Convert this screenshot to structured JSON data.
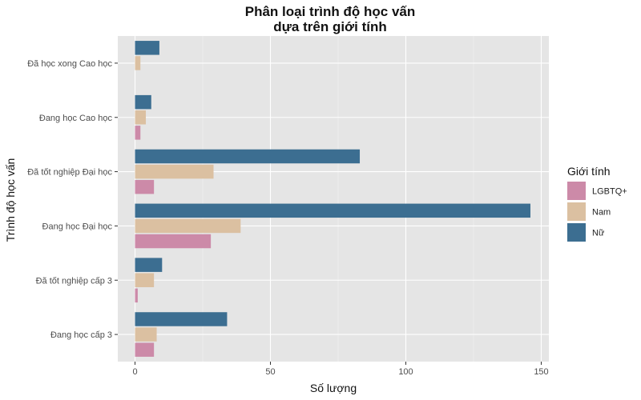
{
  "chart_data": {
    "type": "bar",
    "orientation": "horizontal",
    "title": "Phân loại trình độ học vấn",
    "subtitle": "dựa trên giới tính",
    "xlabel": "Số lượng",
    "ylabel": "Trình độ học vấn",
    "xlim": [
      0,
      150
    ],
    "xticks": [
      0,
      50,
      100,
      150
    ],
    "grid": true,
    "legend_position": "right",
    "legend_title": "Giới tính",
    "categories": [
      "Đã học xong Cao học",
      "Đang học Cao học",
      "Đã tốt nghiệp Đại học",
      "Đang học Đại học",
      "Đã tốt nghiệp cấp 3",
      "Đang học cấp 3"
    ],
    "series": [
      {
        "name": "Nữ",
        "color": "#3c6e91",
        "values": [
          9,
          6,
          83,
          146,
          10,
          34
        ]
      },
      {
        "name": "Nam",
        "color": "#dbc0a1",
        "values": [
          2,
          4,
          29,
          39,
          7,
          8
        ]
      },
      {
        "name": "LGBTQ+",
        "color": "#cc8aa8",
        "values": [
          0,
          2,
          7,
          28,
          1,
          7
        ]
      }
    ],
    "legend_order": [
      "LGBTQ+",
      "Nam",
      "Nữ"
    ]
  }
}
